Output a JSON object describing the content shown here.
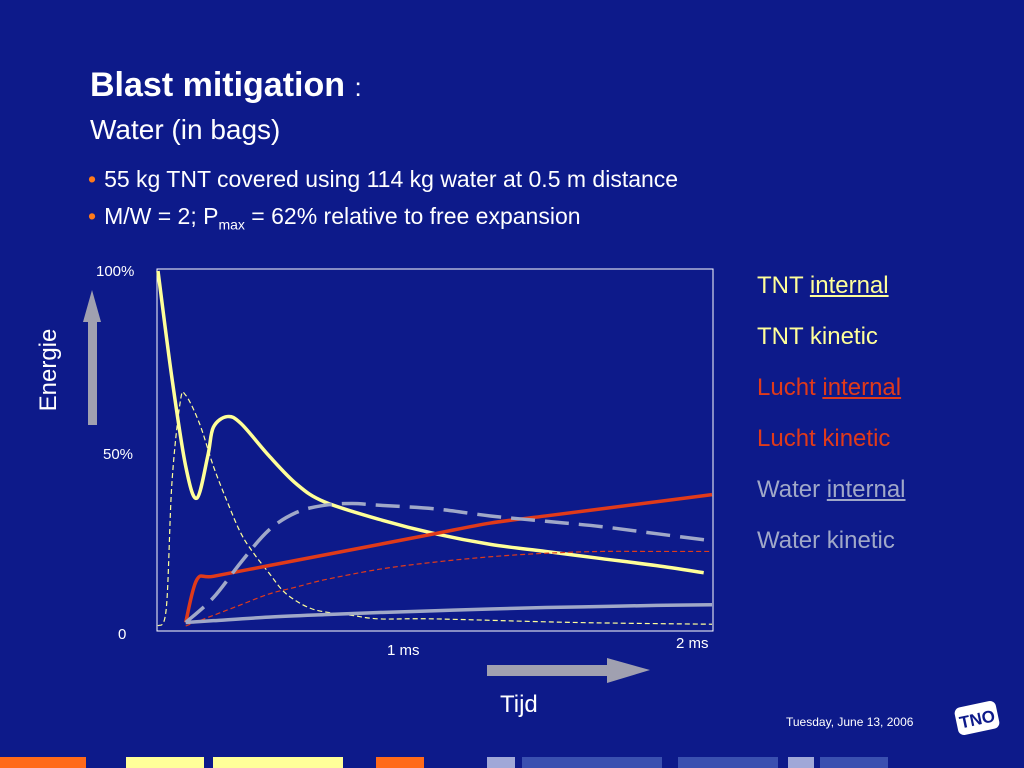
{
  "slide": {
    "title": "Blast mitigation",
    "title_suffix": ":",
    "subtitle": "Water (in bags)",
    "bullets": [
      "55 kg TNT  covered using 114 kg water at 0.5 m distance",
      "M/W = 2; P"
    ],
    "bullet2_sub": "max",
    "bullet2_rest": " = 62% relative to free expansion",
    "date": "Tuesday, June 13, 2006",
    "logo_text": "TNO"
  },
  "chart_data": {
    "type": "line",
    "xlabel": "Tijd",
    "ylabel": "Energie",
    "x_ticks": [
      "1 ms",
      "2 ms"
    ],
    "y_ticks": [
      "100%",
      "50%",
      "0"
    ],
    "xlim": [
      0,
      2
    ],
    "ylim": [
      0,
      100
    ],
    "series": [
      {
        "name": "TNT internal",
        "color": "#ffff99",
        "style": "solid",
        "x": [
          0,
          0.05,
          0.1,
          0.14,
          0.18,
          0.2,
          0.25,
          0.3,
          0.4,
          0.5,
          0.6,
          0.8,
          1.0,
          1.2,
          1.4,
          1.6,
          1.8,
          1.97
        ],
        "y": [
          100,
          70,
          45,
          36,
          48,
          56,
          59,
          57,
          48,
          40,
          35,
          30,
          26,
          23,
          21,
          19,
          17,
          15
        ]
      },
      {
        "name": "TNT kinetic",
        "color": "#ffff99",
        "style": "dashed-thin",
        "x": [
          0,
          0.03,
          0.05,
          0.08,
          0.1,
          0.15,
          0.2,
          0.25,
          0.3,
          0.35,
          0.4,
          0.45,
          0.5,
          0.55,
          0.6,
          0.7,
          0.8,
          1.0,
          1.5,
          2.0
        ],
        "y": [
          0,
          5,
          40,
          63,
          65,
          57,
          45,
          35,
          26,
          20,
          15,
          10,
          7,
          5,
          4,
          3,
          2,
          2,
          1,
          0.5
        ]
      },
      {
        "name": "Lucht internal",
        "color": "#e03a1a",
        "style": "solid",
        "x": [
          0.1,
          0.14,
          0.2,
          0.4,
          0.6,
          0.8,
          1.0,
          1.2,
          1.4,
          1.6,
          1.8,
          2.0
        ],
        "y": [
          1,
          13,
          14,
          17,
          20,
          23,
          26,
          29,
          31,
          33,
          35,
          37
        ]
      },
      {
        "name": "Lucht kinetic",
        "color": "#e03a1a",
        "style": "dashed-thin",
        "x": [
          0.1,
          0.2,
          0.3,
          0.4,
          0.5,
          0.6,
          0.8,
          1.0,
          1.2,
          1.4,
          1.6,
          1.8,
          2.0
        ],
        "y": [
          0,
          3,
          6,
          9,
          11,
          13,
          16,
          18,
          19.5,
          20.5,
          21,
          21,
          21
        ]
      },
      {
        "name": "Water internal",
        "color": "#a0a8c8",
        "style": "dashed-thick",
        "x": [
          0.1,
          0.2,
          0.3,
          0.4,
          0.5,
          0.6,
          0.7,
          0.8,
          1.0,
          1.2,
          1.4,
          1.6,
          1.8,
          2.0
        ],
        "y": [
          1,
          8,
          18,
          27,
          32,
          34,
          34.5,
          34,
          33,
          31,
          29.5,
          28,
          26,
          24
        ]
      },
      {
        "name": "Water kinetic",
        "color": "#a0a8c8",
        "style": "solid",
        "x": [
          0.1,
          0.2,
          0.4,
          0.6,
          0.8,
          1.0,
          1.2,
          1.4,
          1.6,
          1.8,
          2.0
        ],
        "y": [
          1,
          1.5,
          2.5,
          3.2,
          3.8,
          4.3,
          4.8,
          5.2,
          5.5,
          5.8,
          6
        ]
      }
    ]
  },
  "legend": [
    {
      "prefix": "TNT ",
      "underlined": "internal",
      "suffix": "",
      "color": "#ffff99"
    },
    {
      "prefix": "TNT kinetic",
      "underlined": "",
      "suffix": "",
      "color": "#ffff99"
    },
    {
      "prefix": "Lucht ",
      "underlined": "internal",
      "suffix": "",
      "color": "#e03a1a"
    },
    {
      "prefix": "Lucht kinetic",
      "underlined": "",
      "suffix": "",
      "color": "#e03a1a"
    },
    {
      "prefix": "Water ",
      "underlined": "internal",
      "suffix": "",
      "color": "#a0a8c8"
    },
    {
      "prefix": "Water kinetic",
      "underlined": "",
      "suffix": "",
      "color": "#a0a8c8"
    }
  ],
  "footer_stripes": [
    "#ff6a1a",
    "#ffff99",
    "#ffff99",
    "#ff6a1a",
    "#a0a8d8",
    "#3a50b0",
    "#3a50b0",
    "#a0a8d8",
    "#3a50b0"
  ]
}
